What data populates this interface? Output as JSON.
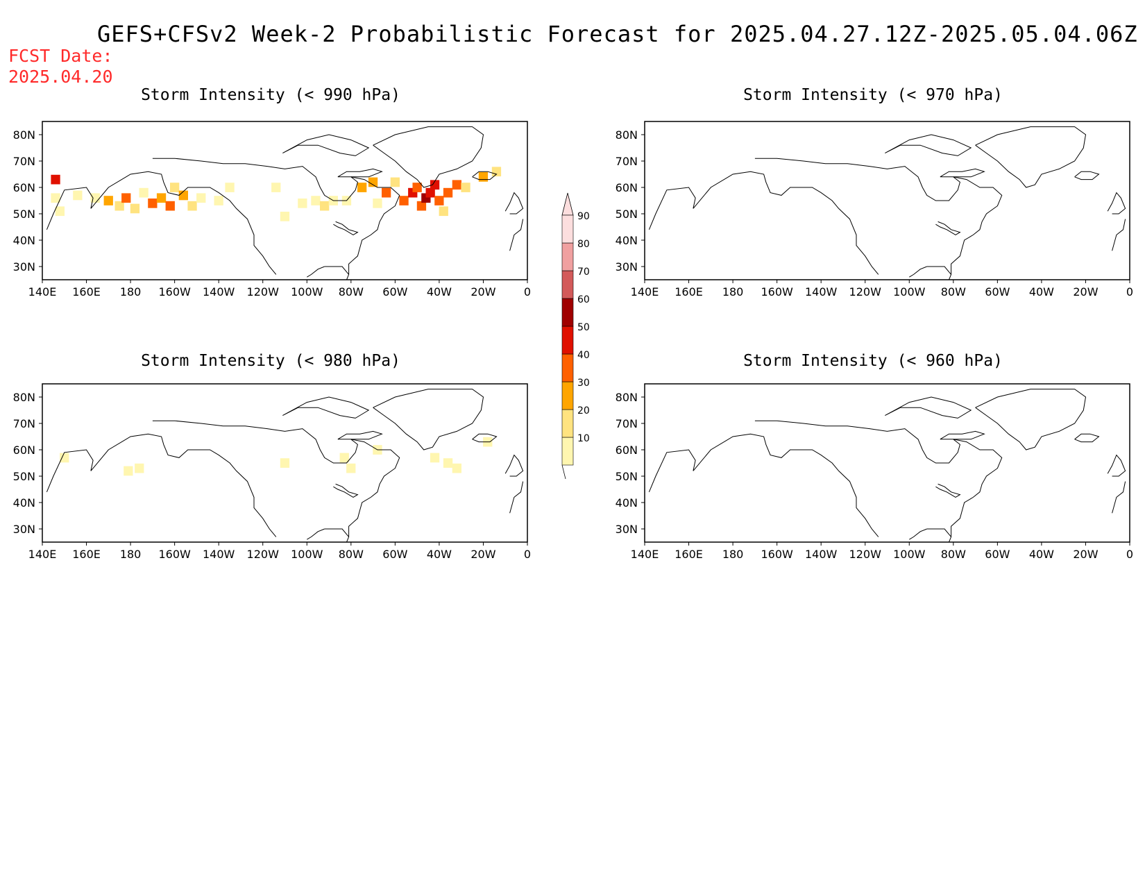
{
  "title": "GEFS+CFSv2 Week-2 Probabilistic Forecast for 2025.04.27.12Z-2025.05.04.06Z",
  "fcst_date_label": "FCST Date:",
  "fcst_date_value": "2025.04.20",
  "axes": {
    "lon_ticks": [
      "140E",
      "160E",
      "180",
      "160W",
      "140W",
      "120W",
      "100W",
      "80W",
      "60W",
      "40W",
      "20W",
      "0"
    ],
    "lat_ticks": [
      "80N",
      "70N",
      "60N",
      "50N",
      "40N",
      "30N"
    ]
  },
  "panels": [
    {
      "id": "p990",
      "title": "Storm Intensity (< 990 hPa)"
    },
    {
      "id": "p970",
      "title": "Storm Intensity (< 970 hPa)"
    },
    {
      "id": "p980",
      "title": "Storm Intensity (< 980 hPa)"
    },
    {
      "id": "p960",
      "title": "Storm Intensity (< 960 hPa)"
    }
  ],
  "colorbar": {
    "levels": [
      "10",
      "20",
      "30",
      "40",
      "50",
      "60",
      "70",
      "80",
      "90"
    ],
    "colors": [
      "#fff6b0",
      "#ffe380",
      "#ffa500",
      "#ff6000",
      "#e01000",
      "#a00000",
      "#d35a5a",
      "#f0a0a0",
      "#fcdede"
    ]
  },
  "chart_data": {
    "type": "heatmap",
    "units": "percent probability",
    "lon_range": [
      140,
      360
    ],
    "lat_range": [
      25,
      85
    ],
    "panels": [
      {
        "id": "p990",
        "threshold": "< 990 hPa",
        "cells": [
          {
            "lon": 146,
            "lat": 63,
            "v": 50
          },
          {
            "lon": 146,
            "lat": 56,
            "v": 15
          },
          {
            "lon": 148,
            "lat": 51,
            "v": 15
          },
          {
            "lon": 156,
            "lat": 57,
            "v": 15
          },
          {
            "lon": 164,
            "lat": 56,
            "v": 15
          },
          {
            "lon": 170,
            "lat": 55,
            "v": 35
          },
          {
            "lon": 175,
            "lat": 53,
            "v": 25
          },
          {
            "lon": 178,
            "lat": 56,
            "v": 45
          },
          {
            "lon": 182,
            "lat": 52,
            "v": 20
          },
          {
            "lon": 186,
            "lat": 58,
            "v": 15
          },
          {
            "lon": 190,
            "lat": 54,
            "v": 45
          },
          {
            "lon": 194,
            "lat": 56,
            "v": 35
          },
          {
            "lon": 198,
            "lat": 53,
            "v": 45
          },
          {
            "lon": 200,
            "lat": 60,
            "v": 20
          },
          {
            "lon": 204,
            "lat": 57,
            "v": 35
          },
          {
            "lon": 208,
            "lat": 53,
            "v": 25
          },
          {
            "lon": 212,
            "lat": 56,
            "v": 15
          },
          {
            "lon": 220,
            "lat": 55,
            "v": 15
          },
          {
            "lon": 225,
            "lat": 60,
            "v": 15
          },
          {
            "lon": 246,
            "lat": 60,
            "v": 15
          },
          {
            "lon": 250,
            "lat": 49,
            "v": 15
          },
          {
            "lon": 258,
            "lat": 54,
            "v": 15
          },
          {
            "lon": 264,
            "lat": 55,
            "v": 15
          },
          {
            "lon": 268,
            "lat": 53,
            "v": 25
          },
          {
            "lon": 272,
            "lat": 55,
            "v": 15
          },
          {
            "lon": 278,
            "lat": 55,
            "v": 15
          },
          {
            "lon": 285,
            "lat": 60,
            "v": 35
          },
          {
            "lon": 290,
            "lat": 62,
            "v": 35
          },
          {
            "lon": 292,
            "lat": 54,
            "v": 15
          },
          {
            "lon": 296,
            "lat": 58,
            "v": 45
          },
          {
            "lon": 300,
            "lat": 62,
            "v": 25
          },
          {
            "lon": 304,
            "lat": 55,
            "v": 45
          },
          {
            "lon": 308,
            "lat": 58,
            "v": 55
          },
          {
            "lon": 310,
            "lat": 60,
            "v": 45
          },
          {
            "lon": 312,
            "lat": 53,
            "v": 45
          },
          {
            "lon": 314,
            "lat": 56,
            "v": 65
          },
          {
            "lon": 316,
            "lat": 58,
            "v": 55
          },
          {
            "lon": 318,
            "lat": 61,
            "v": 55
          },
          {
            "lon": 320,
            "lat": 55,
            "v": 45
          },
          {
            "lon": 322,
            "lat": 51,
            "v": 25
          },
          {
            "lon": 324,
            "lat": 58,
            "v": 45
          },
          {
            "lon": 328,
            "lat": 61,
            "v": 45
          },
          {
            "lon": 332,
            "lat": 60,
            "v": 25
          },
          {
            "lon": 340,
            "lat": 64,
            "v": 35
          },
          {
            "lon": 346,
            "lat": 66,
            "v": 25
          }
        ]
      },
      {
        "id": "p970",
        "threshold": "< 970 hPa",
        "cells": []
      },
      {
        "id": "p980",
        "threshold": "< 980 hPa",
        "cells": [
          {
            "lon": 150,
            "lat": 57,
            "v": 15
          },
          {
            "lon": 179,
            "lat": 52,
            "v": 15
          },
          {
            "lon": 184,
            "lat": 53,
            "v": 15
          },
          {
            "lon": 250,
            "lat": 55,
            "v": 15
          },
          {
            "lon": 277,
            "lat": 57,
            "v": 15
          },
          {
            "lon": 280,
            "lat": 53,
            "v": 15
          },
          {
            "lon": 292,
            "lat": 60,
            "v": 15
          },
          {
            "lon": 318,
            "lat": 57,
            "v": 15
          },
          {
            "lon": 324,
            "lat": 55,
            "v": 15
          },
          {
            "lon": 328,
            "lat": 53,
            "v": 15
          },
          {
            "lon": 342,
            "lat": 63,
            "v": 15
          }
        ]
      },
      {
        "id": "p960",
        "threshold": "< 960 hPa",
        "cells": []
      }
    ]
  }
}
